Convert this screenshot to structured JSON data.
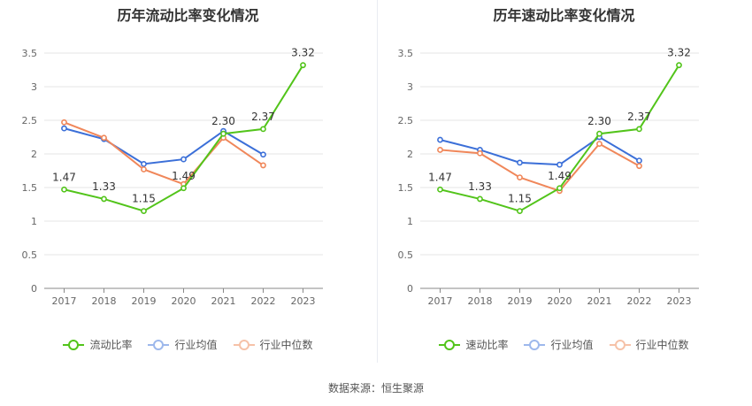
{
  "chart_data": [
    {
      "type": "line",
      "title": "历年流动比率变化情况",
      "categories": [
        "2017",
        "2018",
        "2019",
        "2020",
        "2021",
        "2022",
        "2023"
      ],
      "ylim": [
        0,
        3.5
      ],
      "yticks": [
        "0",
        "0.5",
        "1",
        "1.5",
        "2",
        "2.5",
        "3",
        "3.5"
      ],
      "grid": true,
      "legend_position": "bottom",
      "series": [
        {
          "name": "流动比率",
          "color": "#52c41a",
          "values": [
            1.47,
            1.33,
            1.15,
            1.49,
            2.3,
            2.37,
            3.32
          ],
          "labels": [
            "1.47",
            "1.33",
            "1.15",
            "1.49",
            "2.30",
            "2.37",
            "3.32"
          ]
        },
        {
          "name": "行业均值",
          "color": "#3b6fd8",
          "values": [
            2.38,
            2.22,
            1.85,
            1.92,
            2.34,
            1.99,
            null
          ]
        },
        {
          "name": "行业中位数",
          "color": "#f0875a",
          "values": [
            2.47,
            2.24,
            1.77,
            1.55,
            2.24,
            1.83,
            null
          ]
        }
      ]
    },
    {
      "type": "line",
      "title": "历年速动比率变化情况",
      "categories": [
        "2017",
        "2018",
        "2019",
        "2020",
        "2021",
        "2022",
        "2023"
      ],
      "ylim": [
        0,
        3.5
      ],
      "yticks": [
        "0",
        "0.5",
        "1",
        "1.5",
        "2",
        "2.5",
        "3",
        "3.5"
      ],
      "grid": true,
      "legend_position": "bottom",
      "series": [
        {
          "name": "速动比率",
          "color": "#52c41a",
          "values": [
            1.47,
            1.33,
            1.15,
            1.49,
            2.3,
            2.37,
            3.32
          ],
          "labels": [
            "1.47",
            "1.33",
            "1.15",
            "1.49",
            "2.30",
            "2.37",
            "3.32"
          ]
        },
        {
          "name": "行业均值",
          "color": "#3b6fd8",
          "values": [
            2.21,
            2.06,
            1.87,
            1.84,
            2.25,
            1.9,
            null
          ]
        },
        {
          "name": "行业中位数",
          "color": "#f0875a",
          "values": [
            2.06,
            2.01,
            1.65,
            1.45,
            2.15,
            1.82,
            null
          ]
        }
      ]
    }
  ],
  "legend_left": [
    "流动比率",
    "行业均值",
    "行业中位数"
  ],
  "legend_right": [
    "速动比率",
    "行业均值",
    "行业中位数"
  ],
  "legend_colors": [
    "#52c41a",
    "#3b6fd8",
    "#f0875a"
  ],
  "source_text": "数据来源：恒生聚源"
}
